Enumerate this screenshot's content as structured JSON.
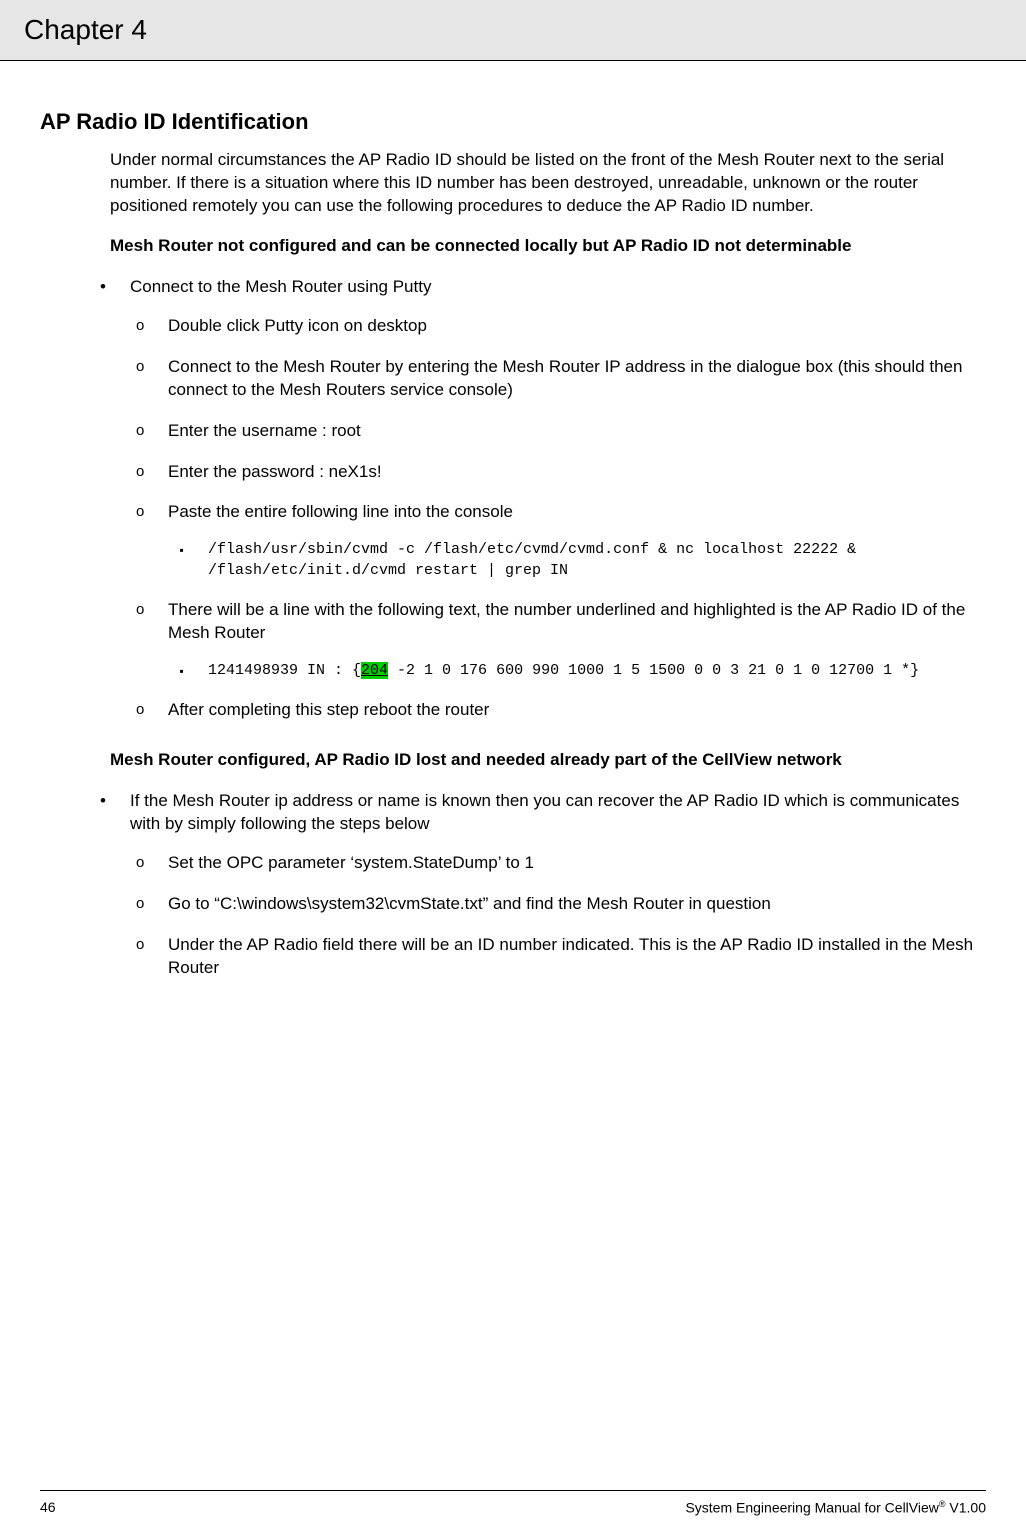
{
  "header": {
    "chapter": "Chapter 4"
  },
  "section": {
    "title": "AP Radio ID Identification",
    "intro": "Under normal circumstances the AP Radio ID should be listed on the front of the Mesh Router next to the serial number. If there is a situation where this ID number has been destroyed, unreadable, unknown or the router positioned remotely you can use the following procedures to deduce the AP Radio ID number.",
    "sub1_title": "Mesh Router not configured and can be connected locally but AP Radio ID not determinable",
    "sub1": {
      "b1": "Connect to the Mesh Router using Putty",
      "s1": "Double click Putty icon on desktop",
      "s2": "Connect to the Mesh Router by entering the Mesh Router IP address in the dialogue box  (this should then connect to the Mesh Routers service console)",
      "s3": "Enter the username :  root",
      "s4": "Enter the password :  neX1s!",
      "s5": "Paste the entire following line into the console",
      "s5_code": "/flash/usr/sbin/cvmd -c /flash/etc/cvmd/cvmd.conf & nc localhost 22222 & /flash/etc/init.d/cvmd restart | grep IN",
      "s6": "There will be a line with the following text, the number underlined and highlighted is the AP Radio ID of the Mesh Router",
      "s6_code_pre": "1241498939 IN : {",
      "s6_code_hl": "204",
      "s6_code_post": " -2 1 0 176 600 990 1000 1 5 1500 0 0 3 21 0 1 0 12700 1 *}",
      "s7": "After completing this step reboot the router"
    },
    "sub2_title": "Mesh Router configured, AP Radio ID lost and needed already part of the CellView network",
    "sub2": {
      "b1": "If the Mesh Router ip address or name is known then you can recover the AP Radio ID which is communicates with by simply following the steps below",
      "s1": "Set the OPC parameter ‘system.StateDump’ to 1",
      "s2": "Go to “C:\\windows\\system32\\cvmState.txt” and find the Mesh Router in question",
      "s3": "Under the AP Radio field there will be an ID number indicated. This is the AP Radio ID installed in the Mesh Router"
    }
  },
  "footer": {
    "page": "46",
    "doc_pre": "System Engineering Manual for CellView",
    "doc_sup": "®",
    "doc_post": " V1.00"
  },
  "styles": {
    "header_bg": "#e6e6e6",
    "highlight_bg": "#00cc00",
    "text_color": "#000000",
    "page_bg": "#ffffff",
    "font_body": "Arial",
    "font_mono": "Courier New",
    "chapter_fontsize": 28,
    "title_fontsize": 22,
    "body_fontsize": 17,
    "mono_fontsize": 15,
    "footer_fontsize": 14
  }
}
